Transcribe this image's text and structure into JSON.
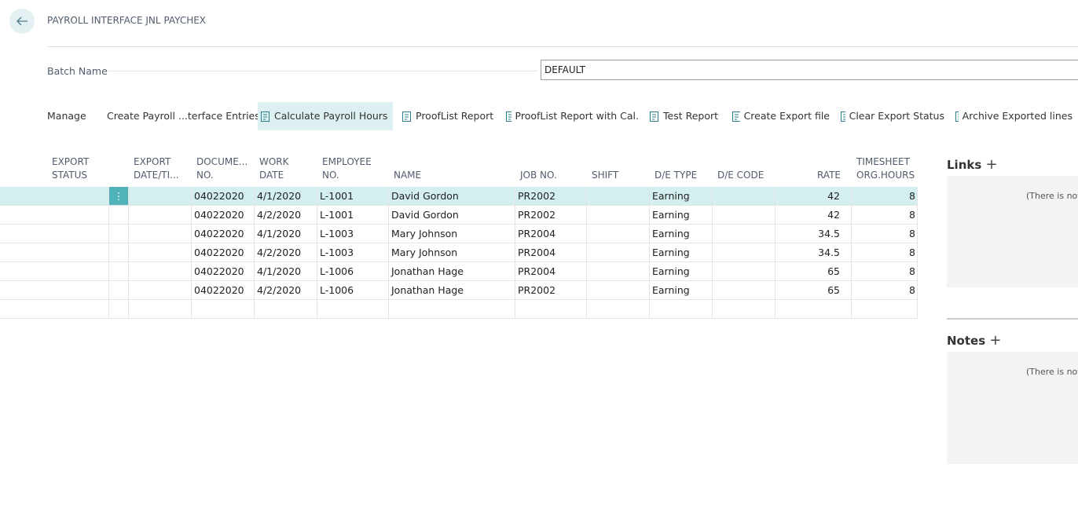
{
  "header": {
    "title": "PAYROLL INTERFACE JNL PAYCHEX"
  },
  "batch": {
    "label": "Batch Name",
    "value": "DEFAULT"
  },
  "actions": [
    "Manage",
    "Create Payroll ...terface Entries",
    "Calculate Payroll Hours",
    "ProofList Report",
    "ProofList Report with Cal.",
    "Test Report",
    "Create Export file",
    "Clear Export Status",
    "Archive Exported lines"
  ],
  "table": {
    "columns": [
      {
        "key": "export_status",
        "lines": [
          "EXPORT",
          "STATUS"
        ]
      },
      {
        "key": "menu",
        "lines": []
      },
      {
        "key": "export_date",
        "lines": [
          "EXPORT",
          "DATE/TI..."
        ]
      },
      {
        "key": "doc",
        "lines": [
          "DOCUME...",
          "NO."
        ]
      },
      {
        "key": "work_date",
        "lines": [
          "WORK",
          "DATE"
        ]
      },
      {
        "key": "emp",
        "lines": [
          "EMPLOYEE",
          "NO."
        ]
      },
      {
        "key": "name",
        "lines": [
          "NAME"
        ]
      },
      {
        "key": "job",
        "lines": [
          "JOB NO."
        ]
      },
      {
        "key": "shift",
        "lines": [
          "SHIFT"
        ]
      },
      {
        "key": "de_type",
        "lines": [
          "D/E TYPE"
        ]
      },
      {
        "key": "de_code",
        "lines": [
          "D/E CODE"
        ]
      },
      {
        "key": "rate",
        "lines": [
          "RATE"
        ]
      },
      {
        "key": "hours",
        "lines": [
          "TIMESHEET",
          "ORG.HOURS"
        ]
      }
    ],
    "rows": [
      {
        "doc": "04022020",
        "work_date": "4/1/2020",
        "emp": "L-1001",
        "name": "David Gordon",
        "job": "PR2002",
        "de_type": "Earning",
        "rate": 42,
        "hours": 8
      },
      {
        "doc": "04022020",
        "work_date": "4/2/2020",
        "emp": "L-1001",
        "name": "David Gordon",
        "job": "PR2002",
        "de_type": "Earning",
        "rate": 42,
        "hours": 8
      },
      {
        "doc": "04022020",
        "work_date": "4/1/2020",
        "emp": "L-1003",
        "name": "Mary Johnson",
        "job": "PR2004",
        "de_type": "Earning",
        "rate": 34.5,
        "hours": 8
      },
      {
        "doc": "04022020",
        "work_date": "4/2/2020",
        "emp": "L-1003",
        "name": "Mary Johnson",
        "job": "PR2004",
        "de_type": "Earning",
        "rate": 34.5,
        "hours": 8
      },
      {
        "doc": "04022020",
        "work_date": "4/1/2020",
        "emp": "L-1006",
        "name": "Jonathan Hage",
        "job": "PR2004",
        "de_type": "Earning",
        "rate": 65,
        "hours": 8
      },
      {
        "doc": "04022020",
        "work_date": "4/2/2020",
        "emp": "L-1006",
        "name": "Jonathan Hage",
        "job": "PR2002",
        "de_type": "Earning",
        "rate": 65,
        "hours": 8
      }
    ]
  },
  "factbox": {
    "links": {
      "title": "Links",
      "empty": "(There is noth"
    },
    "notes": {
      "title": "Notes",
      "empty": "(There is noth"
    }
  }
}
